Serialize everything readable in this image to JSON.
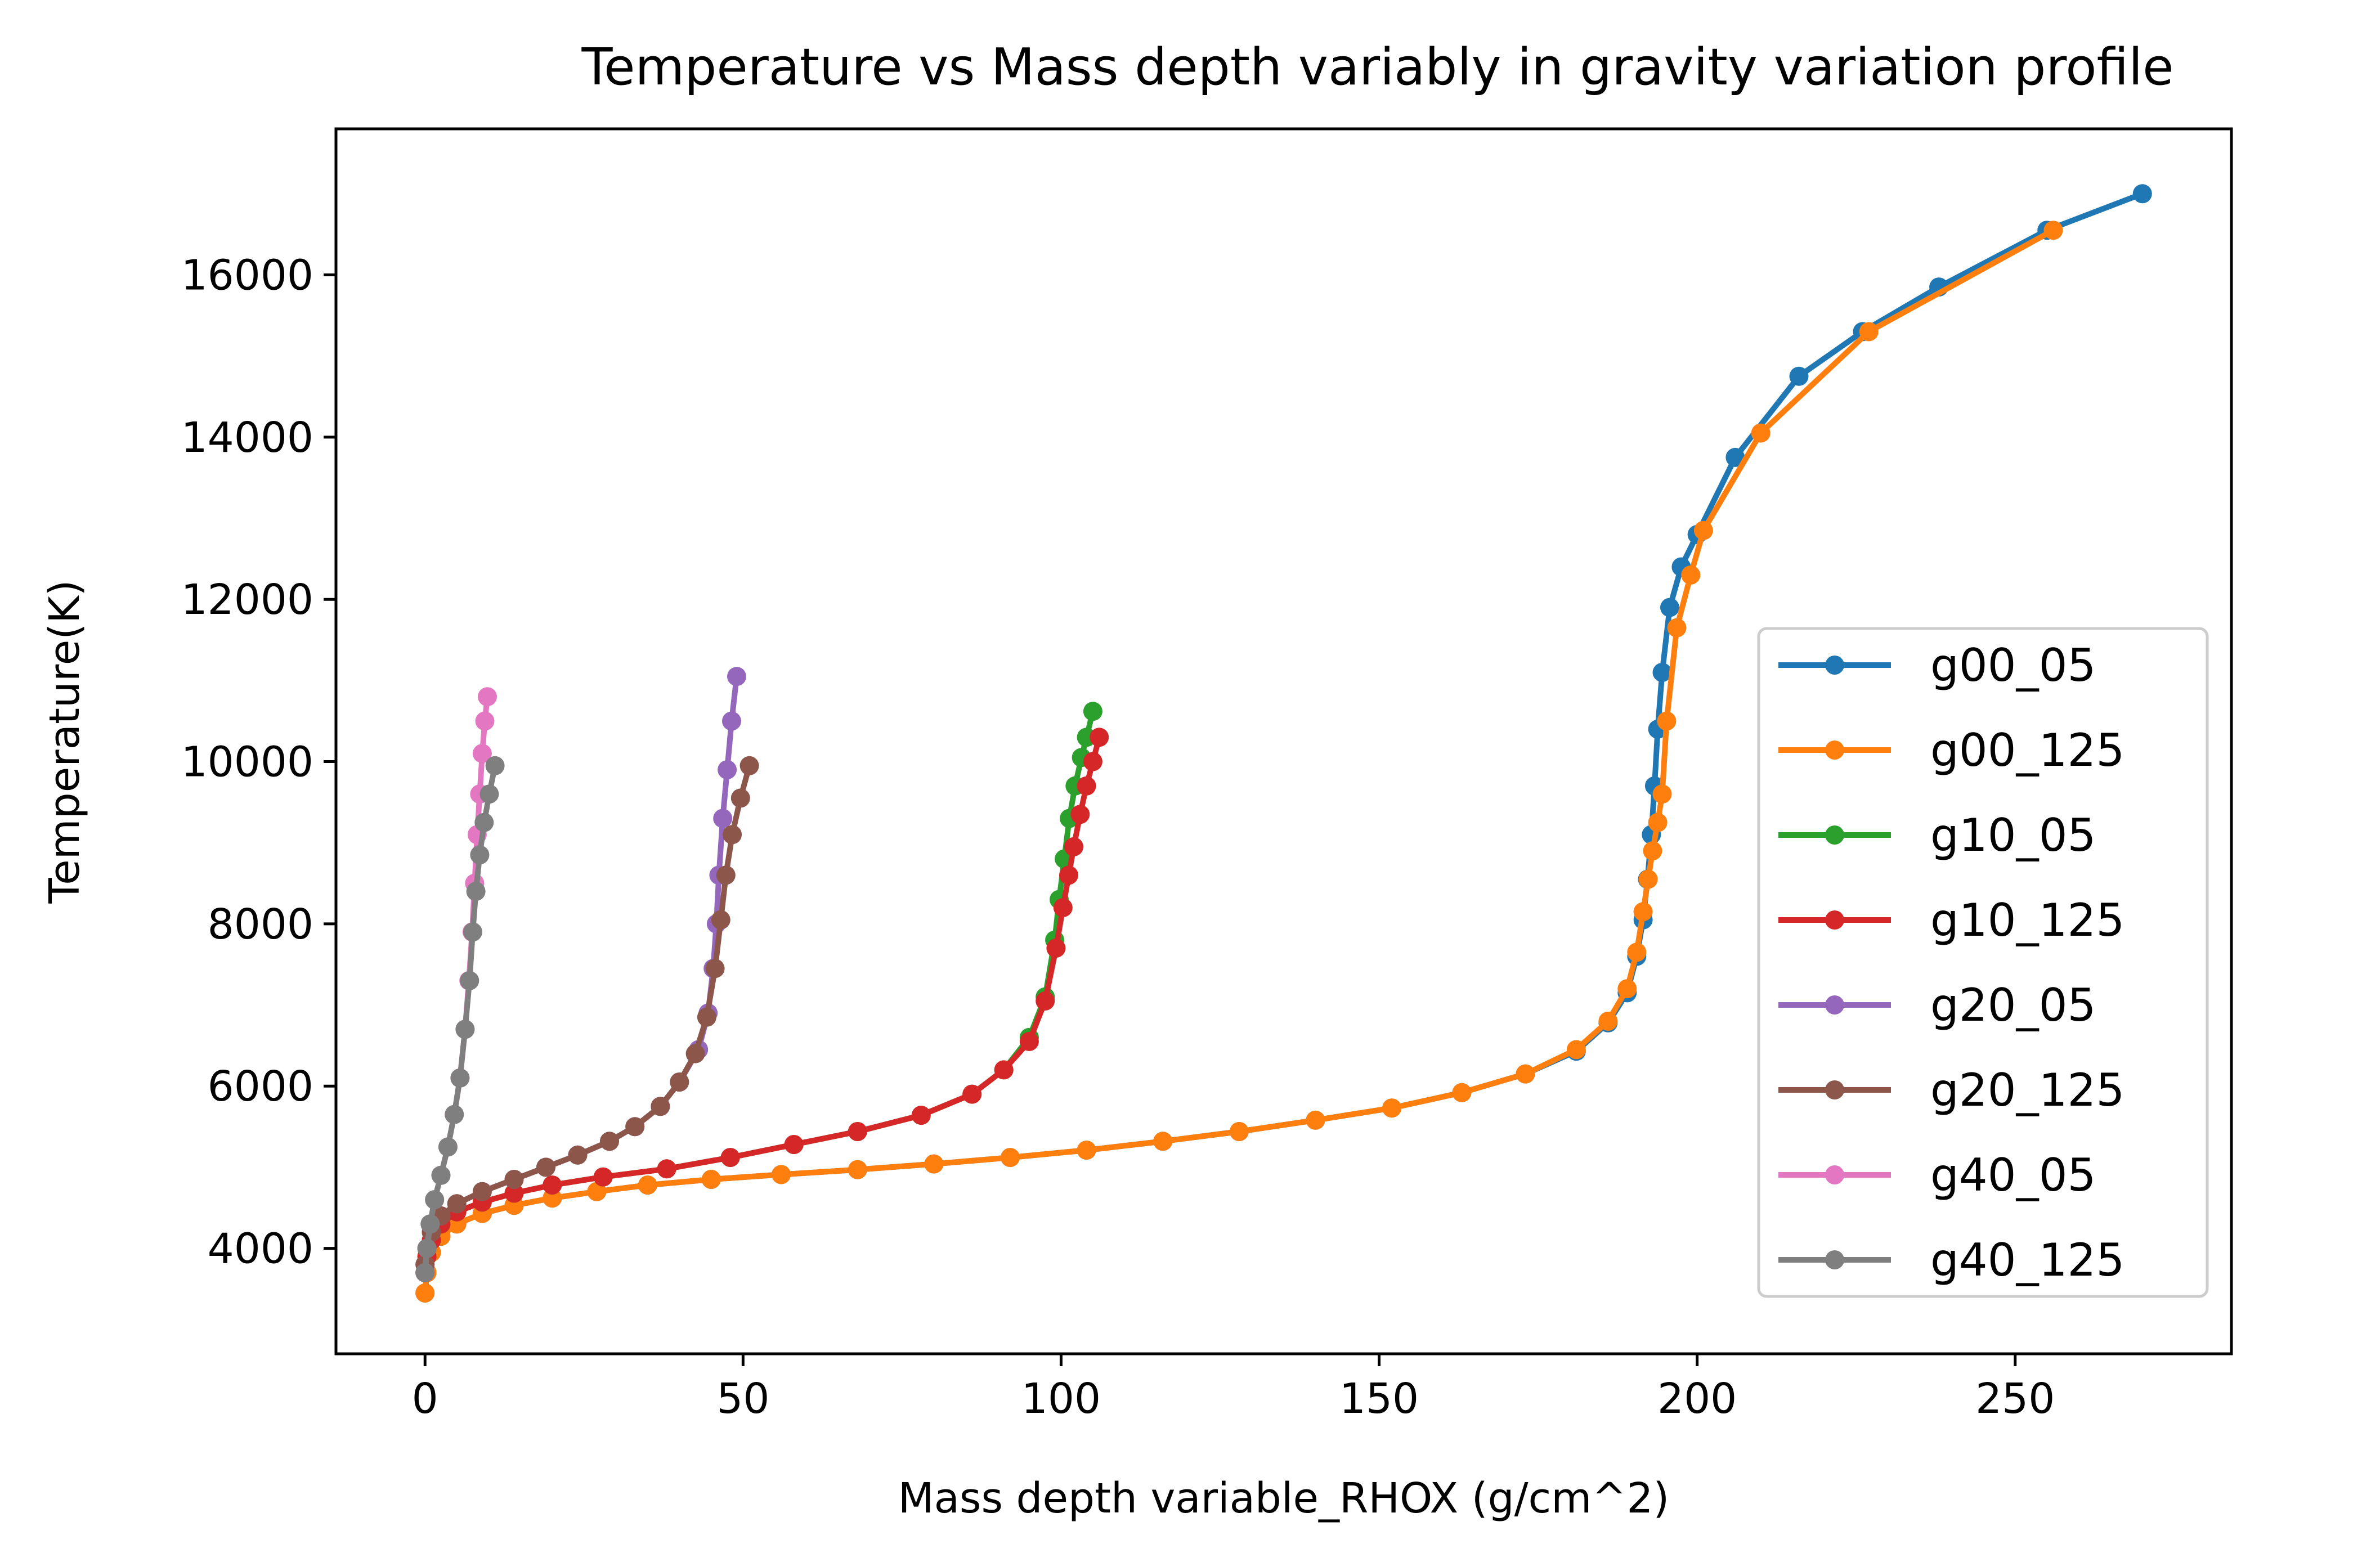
{
  "chart_data": {
    "type": "line",
    "title": "Temperature vs Mass depth variably in gravity variation profile",
    "xlabel": "Mass depth variable_RHOX (g/cm^2)",
    "ylabel": "Temperature(K)",
    "xlim": [
      -14,
      284
    ],
    "ylim": [
      2700,
      17800
    ],
    "xticks": [
      0,
      50,
      100,
      150,
      200,
      250
    ],
    "yticks": [
      4000,
      6000,
      8000,
      10000,
      12000,
      14000,
      16000
    ],
    "legend_position": "lower right",
    "grid": false,
    "series": [
      {
        "name": "g00_05",
        "color": "#1f77b4",
        "points": [
          [
            0,
            3450
          ],
          [
            0.3,
            3700
          ],
          [
            1,
            3950
          ],
          [
            2.5,
            4150
          ],
          [
            5,
            4300
          ],
          [
            9,
            4430
          ],
          [
            14,
            4530
          ],
          [
            20,
            4620
          ],
          [
            27,
            4700
          ],
          [
            35,
            4780
          ],
          [
            45,
            4850
          ],
          [
            56,
            4910
          ],
          [
            68,
            4970
          ],
          [
            80,
            5040
          ],
          [
            92,
            5120
          ],
          [
            104,
            5210
          ],
          [
            116,
            5320
          ],
          [
            128,
            5440
          ],
          [
            140,
            5580
          ],
          [
            152,
            5730
          ],
          [
            163,
            5920
          ],
          [
            173,
            6150
          ],
          [
            181,
            6430
          ],
          [
            186,
            6780
          ],
          [
            189,
            7150
          ],
          [
            190.5,
            7600
          ],
          [
            191.5,
            8050
          ],
          [
            192.2,
            8550
          ],
          [
            192.8,
            9100
          ],
          [
            193.3,
            9700
          ],
          [
            193.8,
            10400
          ],
          [
            194.5,
            11100
          ],
          [
            195.7,
            11900
          ],
          [
            197.5,
            12400
          ],
          [
            200,
            12800
          ],
          [
            206,
            13750
          ],
          [
            216,
            14750
          ],
          [
            226,
            15300
          ],
          [
            238,
            15850
          ],
          [
            255,
            16550
          ],
          [
            270,
            17000
          ]
        ]
      },
      {
        "name": "g00_125",
        "color": "#ff7f0e",
        "points": [
          [
            0,
            3450
          ],
          [
            0.3,
            3700
          ],
          [
            1,
            3950
          ],
          [
            2.5,
            4150
          ],
          [
            5,
            4300
          ],
          [
            9,
            4430
          ],
          [
            14,
            4530
          ],
          [
            20,
            4620
          ],
          [
            27,
            4700
          ],
          [
            35,
            4780
          ],
          [
            45,
            4850
          ],
          [
            56,
            4910
          ],
          [
            68,
            4970
          ],
          [
            80,
            5040
          ],
          [
            92,
            5120
          ],
          [
            104,
            5210
          ],
          [
            116,
            5320
          ],
          [
            128,
            5440
          ],
          [
            140,
            5580
          ],
          [
            152,
            5730
          ],
          [
            163,
            5920
          ],
          [
            173,
            6150
          ],
          [
            181,
            6450
          ],
          [
            186,
            6800
          ],
          [
            189,
            7200
          ],
          [
            190.5,
            7650
          ],
          [
            191.5,
            8150
          ],
          [
            192.3,
            8550
          ],
          [
            193,
            8900
          ],
          [
            193.8,
            9250
          ],
          [
            194.5,
            9600
          ],
          [
            195.2,
            10500
          ],
          [
            196.8,
            11650
          ],
          [
            199,
            12300
          ],
          [
            201,
            12850
          ],
          [
            210,
            14050
          ],
          [
            227,
            15300
          ],
          [
            256,
            16550
          ]
        ]
      },
      {
        "name": "g10_05",
        "color": "#2ca02c",
        "points": [
          [
            0,
            3700
          ],
          [
            0.3,
            3900
          ],
          [
            1,
            4100
          ],
          [
            2.5,
            4300
          ],
          [
            5,
            4450
          ],
          [
            9,
            4570
          ],
          [
            14,
            4680
          ],
          [
            20,
            4780
          ],
          [
            28,
            4880
          ],
          [
            38,
            4980
          ],
          [
            48,
            5120
          ],
          [
            58,
            5280
          ],
          [
            68,
            5440
          ],
          [
            78,
            5640
          ],
          [
            86,
            5900
          ],
          [
            91,
            6200
          ],
          [
            95,
            6600
          ],
          [
            97.5,
            7100
          ],
          [
            99,
            7800
          ],
          [
            99.7,
            8300
          ],
          [
            100.5,
            8800
          ],
          [
            101.3,
            9300
          ],
          [
            102.2,
            9700
          ],
          [
            103.2,
            10050
          ],
          [
            104,
            10300
          ],
          [
            105,
            10620
          ]
        ]
      },
      {
        "name": "g10_125",
        "color": "#d62728",
        "points": [
          [
            0,
            3700
          ],
          [
            0.3,
            3900
          ],
          [
            1,
            4100
          ],
          [
            2.5,
            4300
          ],
          [
            5,
            4450
          ],
          [
            9,
            4570
          ],
          [
            14,
            4680
          ],
          [
            20,
            4780
          ],
          [
            28,
            4880
          ],
          [
            38,
            4980
          ],
          [
            48,
            5120
          ],
          [
            58,
            5280
          ],
          [
            68,
            5440
          ],
          [
            78,
            5640
          ],
          [
            86,
            5900
          ],
          [
            91,
            6200
          ],
          [
            95,
            6550
          ],
          [
            97.5,
            7050
          ],
          [
            99.2,
            7700
          ],
          [
            100.3,
            8200
          ],
          [
            101.2,
            8600
          ],
          [
            102,
            8950
          ],
          [
            103,
            9350
          ],
          [
            104,
            9700
          ],
          [
            105,
            10000
          ],
          [
            106,
            10300
          ]
        ]
      },
      {
        "name": "g20_05",
        "color": "#9467bd",
        "points": [
          [
            0,
            3800
          ],
          [
            0.3,
            4000
          ],
          [
            1,
            4200
          ],
          [
            2.5,
            4400
          ],
          [
            5,
            4550
          ],
          [
            9,
            4700
          ],
          [
            14,
            4850
          ],
          [
            19,
            5000
          ],
          [
            24,
            5150
          ],
          [
            29,
            5320
          ],
          [
            33,
            5500
          ],
          [
            37,
            5750
          ],
          [
            40,
            6050
          ],
          [
            43,
            6450
          ],
          [
            44.5,
            6900
          ],
          [
            45.3,
            7450
          ],
          [
            45.8,
            8000
          ],
          [
            46.2,
            8600
          ],
          [
            46.8,
            9300
          ],
          [
            47.5,
            9900
          ],
          [
            48.2,
            10500
          ],
          [
            49,
            11050
          ]
        ]
      },
      {
        "name": "g20_125",
        "color": "#8c564b",
        "points": [
          [
            0,
            3800
          ],
          [
            0.3,
            4000
          ],
          [
            1,
            4200
          ],
          [
            2.5,
            4400
          ],
          [
            5,
            4550
          ],
          [
            9,
            4700
          ],
          [
            14,
            4850
          ],
          [
            19,
            5000
          ],
          [
            24,
            5150
          ],
          [
            29,
            5320
          ],
          [
            33,
            5500
          ],
          [
            37,
            5750
          ],
          [
            40,
            6050
          ],
          [
            42.5,
            6400
          ],
          [
            44.3,
            6850
          ],
          [
            45.6,
            7450
          ],
          [
            46.5,
            8050
          ],
          [
            47.3,
            8600
          ],
          [
            48.3,
            9100
          ],
          [
            49.6,
            9550
          ],
          [
            51,
            9950
          ]
        ]
      },
      {
        "name": "g40_05",
        "color": "#e377c2",
        "points": [
          [
            0,
            3700
          ],
          [
            0.3,
            4000
          ],
          [
            0.8,
            4300
          ],
          [
            1.5,
            4600
          ],
          [
            2.5,
            4900
          ],
          [
            3.6,
            5250
          ],
          [
            4.6,
            5650
          ],
          [
            5.5,
            6100
          ],
          [
            6.3,
            6700
          ],
          [
            6.9,
            7300
          ],
          [
            7.4,
            7900
          ],
          [
            7.8,
            8500
          ],
          [
            8.2,
            9100
          ],
          [
            8.6,
            9600
          ],
          [
            9,
            10100
          ],
          [
            9.4,
            10500
          ],
          [
            9.8,
            10800
          ]
        ]
      },
      {
        "name": "g40_125",
        "color": "#7f7f7f",
        "points": [
          [
            0,
            3700
          ],
          [
            0.3,
            4000
          ],
          [
            0.8,
            4300
          ],
          [
            1.5,
            4600
          ],
          [
            2.5,
            4900
          ],
          [
            3.6,
            5250
          ],
          [
            4.6,
            5650
          ],
          [
            5.5,
            6100
          ],
          [
            6.3,
            6700
          ],
          [
            7,
            7300
          ],
          [
            7.5,
            7900
          ],
          [
            8,
            8400
          ],
          [
            8.6,
            8850
          ],
          [
            9.3,
            9250
          ],
          [
            10.1,
            9600
          ],
          [
            11,
            9950
          ]
        ]
      }
    ]
  }
}
